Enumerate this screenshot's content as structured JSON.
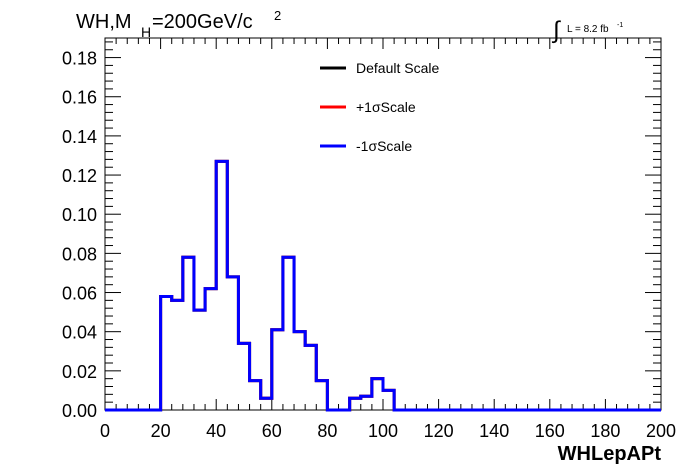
{
  "chart_data": {
    "type": "histogram",
    "title_main": "WH,M",
    "title_sub": "H",
    "title_rest": "=200GeV/c",
    "title_sup": "2",
    "lumi_symbol": "∫",
    "lumi_text": "L = 8.2 fb",
    "lumi_sup": "-1",
    "xlabel": "WHLepAPt",
    "ylabel": "",
    "xlim": [
      0,
      200
    ],
    "ylim": [
      0,
      0.19
    ],
    "x_ticks": [
      0,
      20,
      40,
      60,
      80,
      100,
      120,
      140,
      160,
      180,
      200
    ],
    "x_tick_labels": [
      "0",
      "20",
      "40",
      "60",
      "80",
      "100",
      "120",
      "140",
      "160",
      "180",
      "200"
    ],
    "y_ticks": [
      0,
      0.02,
      0.04,
      0.06,
      0.08,
      0.1,
      0.12,
      0.14,
      0.16,
      0.18
    ],
    "y_tick_labels": [
      "0.00",
      "0.02",
      "0.04",
      "0.06",
      "0.08",
      "0.10",
      "0.12",
      "0.14",
      "0.16",
      "0.18"
    ],
    "bin_edges": [
      0,
      4,
      8,
      12,
      16,
      20,
      24,
      28,
      32,
      36,
      40,
      44,
      48,
      52,
      56,
      60,
      64,
      68,
      72,
      76,
      80,
      84,
      88,
      92,
      96,
      100,
      104,
      108,
      112,
      116,
      120,
      124,
      128,
      132,
      136,
      140,
      144,
      148,
      152,
      156,
      160,
      164,
      168,
      172,
      176,
      180,
      184,
      188,
      192,
      196,
      200
    ],
    "legend_position": "top-center",
    "series": [
      {
        "name": "Default Scale",
        "color": "#000000",
        "values": [
          0,
          0,
          0,
          0,
          0,
          0.058,
          0.056,
          0.078,
          0.051,
          0.062,
          0.127,
          0.068,
          0.034,
          0.015,
          0.006,
          0.041,
          0.078,
          0.04,
          0.033,
          0.015,
          0,
          0,
          0.006,
          0.007,
          0.016,
          0.01,
          0,
          0,
          0,
          0,
          0,
          0,
          0,
          0,
          0,
          0,
          0,
          0,
          0,
          0,
          0,
          0,
          0,
          0,
          0,
          0,
          0,
          0,
          0,
          0
        ]
      },
      {
        "name": "+1σScale",
        "color": "#ff0000",
        "values": [
          0,
          0,
          0,
          0,
          0,
          0.058,
          0.056,
          0.078,
          0.051,
          0.062,
          0.127,
          0.068,
          0.034,
          0.015,
          0.006,
          0.041,
          0.078,
          0.04,
          0.033,
          0.015,
          0,
          0,
          0.006,
          0.007,
          0.016,
          0.01,
          0,
          0,
          0,
          0,
          0,
          0,
          0,
          0,
          0,
          0,
          0,
          0,
          0,
          0,
          0,
          0,
          0,
          0,
          0,
          0,
          0,
          0,
          0,
          0
        ]
      },
      {
        "name": "-1σScale",
        "color": "#0000ff",
        "values": [
          0,
          0,
          0,
          0,
          0,
          0.058,
          0.056,
          0.078,
          0.051,
          0.062,
          0.127,
          0.068,
          0.034,
          0.015,
          0.006,
          0.041,
          0.078,
          0.04,
          0.033,
          0.015,
          0,
          0,
          0.006,
          0.007,
          0.016,
          0.01,
          0,
          0,
          0,
          0,
          0,
          0,
          0,
          0,
          0,
          0,
          0,
          0,
          0,
          0,
          0,
          0,
          0,
          0,
          0,
          0,
          0,
          0,
          0,
          0
        ]
      }
    ]
  }
}
